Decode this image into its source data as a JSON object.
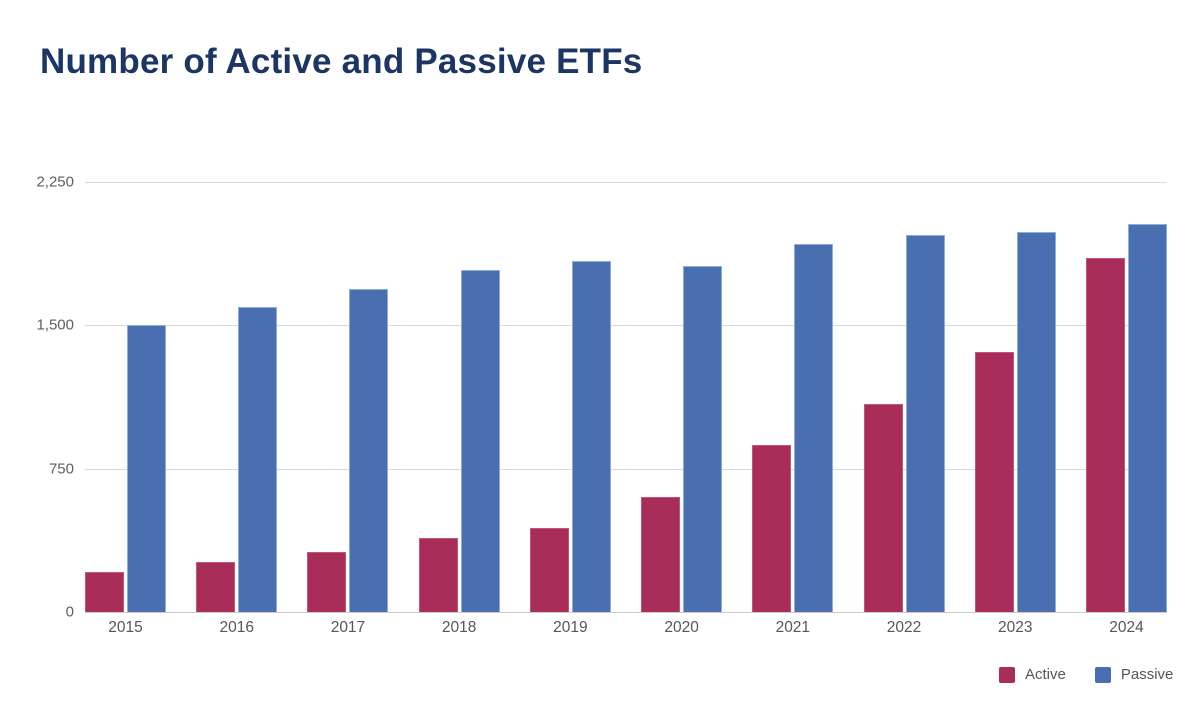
{
  "chart_data": {
    "type": "bar",
    "title": "Number of Active and Passive ETFs",
    "categories": [
      "2015",
      "2016",
      "2017",
      "2018",
      "2019",
      "2020",
      "2021",
      "2022",
      "2023",
      "2024"
    ],
    "series": [
      {
        "name": "Active",
        "color": "#a82d58",
        "values": [
          210,
          260,
          315,
          385,
          440,
          600,
          875,
          1090,
          1360,
          1855
        ]
      },
      {
        "name": "Passive",
        "color": "#4a6fb0",
        "values": [
          1500,
          1595,
          1690,
          1790,
          1835,
          1810,
          1925,
          1975,
          1990,
          2030
        ]
      }
    ],
    "xlabel": "",
    "ylabel": "",
    "ylim": [
      0,
      2250
    ],
    "ytick_labels": [
      "2,250",
      "1,500",
      "750",
      "0"
    ],
    "grid": true,
    "legend_position": "bottom-right",
    "colors": {
      "title": "#1b3664",
      "axis_text": "#5e5e60",
      "gridline": "#d9d9d9",
      "background": "#ffffff"
    }
  }
}
